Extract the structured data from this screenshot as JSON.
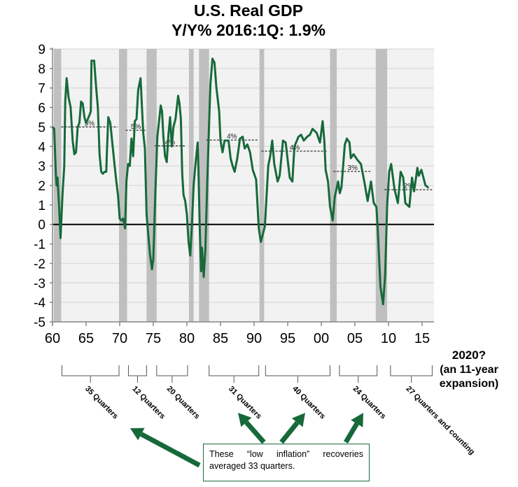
{
  "chart_data": {
    "type": "line",
    "title": "U.S. Real GDP",
    "subtitle": "Y/Y%   2016:1Q:  1.9%",
    "xlabel": "",
    "ylabel": "",
    "xlim": [
      1960,
      2016.6
    ],
    "ylim": [
      -5,
      9
    ],
    "grid": true,
    "y_ticks": [
      "9",
      "8",
      "7",
      "6",
      "5",
      "4",
      "3",
      "2",
      "1",
      "0",
      "-1",
      "-2",
      "-3",
      "-4",
      "-5"
    ],
    "x_ticks": [
      {
        "year": 1960,
        "label": "60"
      },
      {
        "year": 1965,
        "label": "65"
      },
      {
        "year": 1970,
        "label": "70"
      },
      {
        "year": 1975,
        "label": "75"
      },
      {
        "year": 1980,
        "label": "80"
      },
      {
        "year": 1985,
        "label": "85"
      },
      {
        "year": 1990,
        "label": "90"
      },
      {
        "year": 1995,
        "label": "95"
      },
      {
        "year": 2000,
        "label": "00"
      },
      {
        "year": 2005,
        "label": "05"
      },
      {
        "year": 2010,
        "label": "10"
      },
      {
        "year": 2015,
        "label": "15"
      }
    ],
    "line_color": "#17693a",
    "recession_color": "#bfbfbf",
    "recessions": [
      [
        1960.2,
        1961.3
      ],
      [
        1969.9,
        1971.1
      ],
      [
        1974.0,
        1975.5
      ],
      [
        1980.3,
        1981.0
      ],
      [
        1981.8,
        1983.3
      ],
      [
        1990.8,
        1991.5
      ],
      [
        2001.3,
        2002.3
      ],
      [
        2008.1,
        2009.8
      ]
    ],
    "series": [
      {
        "name": "Real GDP Y/Y%",
        "points": [
          [
            1960.0,
            5.0
          ],
          [
            1960.25,
            4.9
          ],
          [
            1960.5,
            2.6
          ],
          [
            1960.6,
            2.0
          ],
          [
            1960.75,
            2.4
          ],
          [
            1961.0,
            0.8
          ],
          [
            1961.2,
            -0.7
          ],
          [
            1961.5,
            1.6
          ],
          [
            1961.75,
            3.0
          ],
          [
            1961.9,
            6.3
          ],
          [
            1962.1,
            7.5
          ],
          [
            1962.4,
            6.5
          ],
          [
            1962.7,
            6.0
          ],
          [
            1963.0,
            4.3
          ],
          [
            1963.25,
            3.6
          ],
          [
            1963.5,
            3.7
          ],
          [
            1963.75,
            5.0
          ],
          [
            1964.0,
            5.2
          ],
          [
            1964.25,
            6.3
          ],
          [
            1964.5,
            6.2
          ],
          [
            1964.75,
            5.5
          ],
          [
            1965.0,
            5.2
          ],
          [
            1965.25,
            5.4
          ],
          [
            1965.5,
            5.6
          ],
          [
            1965.7,
            5.8
          ],
          [
            1965.8,
            8.4
          ],
          [
            1966.2,
            8.4
          ],
          [
            1966.5,
            7.0
          ],
          [
            1966.75,
            6.0
          ],
          [
            1967.0,
            3.6
          ],
          [
            1967.25,
            2.7
          ],
          [
            1967.5,
            2.6
          ],
          [
            1967.75,
            2.7
          ],
          [
            1968.0,
            2.7
          ],
          [
            1968.1,
            3.8
          ],
          [
            1968.3,
            5.5
          ],
          [
            1968.6,
            5.2
          ],
          [
            1968.9,
            4.2
          ],
          [
            1969.25,
            3.0
          ],
          [
            1969.5,
            2.2
          ],
          [
            1969.75,
            1.5
          ],
          [
            1970.0,
            0.3
          ],
          [
            1970.25,
            0.2
          ],
          [
            1970.5,
            0.3
          ],
          [
            1970.8,
            -0.2
          ],
          [
            1971.0,
            2.2
          ],
          [
            1971.25,
            3.1
          ],
          [
            1971.5,
            3.0
          ],
          [
            1971.75,
            4.4
          ],
          [
            1972.0,
            3.5
          ],
          [
            1972.25,
            5.3
          ],
          [
            1972.5,
            5.4
          ],
          [
            1972.75,
            6.9
          ],
          [
            1973.1,
            7.5
          ],
          [
            1973.3,
            6.1
          ],
          [
            1973.5,
            4.7
          ],
          [
            1973.75,
            3.9
          ],
          [
            1974.0,
            0.5
          ],
          [
            1974.25,
            -0.5
          ],
          [
            1974.5,
            -1.5
          ],
          [
            1974.8,
            -2.3
          ],
          [
            1975.0,
            -1.8
          ],
          [
            1975.3,
            1.6
          ],
          [
            1975.6,
            4.5
          ],
          [
            1976.1,
            6.1
          ],
          [
            1976.3,
            5.8
          ],
          [
            1976.5,
            4.5
          ],
          [
            1976.75,
            3.5
          ],
          [
            1977.0,
            3.2
          ],
          [
            1977.25,
            4.6
          ],
          [
            1977.5,
            5.5
          ],
          [
            1977.75,
            4.0
          ],
          [
            1978.0,
            5.0
          ],
          [
            1978.3,
            5.4
          ],
          [
            1978.5,
            6.0
          ],
          [
            1978.7,
            6.6
          ],
          [
            1978.9,
            6.2
          ],
          [
            1979.1,
            5.4
          ],
          [
            1979.3,
            2.6
          ],
          [
            1979.5,
            1.5
          ],
          [
            1979.75,
            1.2
          ],
          [
            1980.0,
            0.5
          ],
          [
            1980.25,
            -0.9
          ],
          [
            1980.5,
            -1.6
          ],
          [
            1980.75,
            0.0
          ],
          [
            1981.0,
            2.0
          ],
          [
            1981.25,
            3.0
          ],
          [
            1981.6,
            4.2
          ],
          [
            1981.75,
            2.4
          ],
          [
            1981.9,
            0.0
          ],
          [
            1982.1,
            -2.4
          ],
          [
            1982.25,
            -1.2
          ],
          [
            1982.5,
            -2.7
          ],
          [
            1982.75,
            -1.3
          ],
          [
            1983.0,
            1.8
          ],
          [
            1983.25,
            4.6
          ],
          [
            1983.5,
            7.2
          ],
          [
            1983.8,
            8.5
          ],
          [
            1984.1,
            8.3
          ],
          [
            1984.4,
            7.0
          ],
          [
            1984.8,
            5.8
          ],
          [
            1985.0,
            4.3
          ],
          [
            1985.3,
            3.7
          ],
          [
            1985.6,
            4.3
          ],
          [
            1986.2,
            4.3
          ],
          [
            1986.5,
            3.4
          ],
          [
            1986.8,
            3.0
          ],
          [
            1987.1,
            2.7
          ],
          [
            1987.5,
            3.4
          ],
          [
            1987.9,
            4.4
          ],
          [
            1988.3,
            4.5
          ],
          [
            1988.6,
            3.9
          ],
          [
            1989.0,
            4.1
          ],
          [
            1989.4,
            3.7
          ],
          [
            1989.8,
            2.8
          ],
          [
            1990.3,
            2.3
          ],
          [
            1990.7,
            -0.2
          ],
          [
            1991.0,
            -0.9
          ],
          [
            1991.3,
            -0.5
          ],
          [
            1991.6,
            -0.1
          ],
          [
            1992.1,
            3.0
          ],
          [
            1992.4,
            3.5
          ],
          [
            1992.7,
            4.3
          ],
          [
            1993.0,
            3.1
          ],
          [
            1993.5,
            2.2
          ],
          [
            1993.8,
            2.5
          ],
          [
            1994.3,
            4.3
          ],
          [
            1994.7,
            4.2
          ],
          [
            1995.3,
            2.4
          ],
          [
            1995.7,
            2.2
          ],
          [
            1996.0,
            4.0
          ],
          [
            1996.6,
            4.5
          ],
          [
            1997.0,
            4.6
          ],
          [
            1997.4,
            4.3
          ],
          [
            1997.9,
            4.5
          ],
          [
            1998.3,
            4.6
          ],
          [
            1998.7,
            4.9
          ],
          [
            1999.3,
            4.7
          ],
          [
            1999.8,
            4.2
          ],
          [
            2000.2,
            5.3
          ],
          [
            2000.45,
            4.3
          ],
          [
            2000.65,
            2.8
          ],
          [
            2001.0,
            2.2
          ],
          [
            2001.3,
            0.9
          ],
          [
            2001.7,
            0.2
          ],
          [
            2002.0,
            1.4
          ],
          [
            2002.5,
            2.2
          ],
          [
            2002.75,
            1.6
          ],
          [
            2003.0,
            1.9
          ],
          [
            2003.5,
            4.1
          ],
          [
            2003.8,
            4.4
          ],
          [
            2004.2,
            4.2
          ],
          [
            2004.4,
            3.4
          ],
          [
            2004.8,
            3.6
          ],
          [
            2005.4,
            3.3
          ],
          [
            2005.9,
            3.1
          ],
          [
            2006.4,
            2.2
          ],
          [
            2006.9,
            1.2
          ],
          [
            2007.4,
            2.2
          ],
          [
            2007.8,
            1.1
          ],
          [
            2008.2,
            0.9
          ],
          [
            2008.4,
            -0.2
          ],
          [
            2008.8,
            -3.2
          ],
          [
            2009.2,
            -4.1
          ],
          [
            2009.5,
            -2.6
          ],
          [
            2009.8,
            1.0
          ],
          [
            2010.1,
            2.7
          ],
          [
            2010.4,
            3.1
          ],
          [
            2010.9,
            1.8
          ],
          [
            2011.4,
            1.1
          ],
          [
            2011.8,
            2.7
          ],
          [
            2012.2,
            2.4
          ],
          [
            2012.5,
            1.1
          ],
          [
            2013.1,
            0.9
          ],
          [
            2013.5,
            2.4
          ],
          [
            2013.8,
            1.7
          ],
          [
            2014.3,
            2.9
          ],
          [
            2014.5,
            2.5
          ],
          [
            2014.9,
            2.8
          ],
          [
            2015.2,
            2.4
          ],
          [
            2015.5,
            2.0
          ],
          [
            2015.9,
            1.9
          ],
          [
            2016.0,
            1.9
          ]
        ]
      }
    ],
    "averages": [
      {
        "from": 1961.3,
        "to": 1969.7,
        "value": 5.0,
        "label": "5%"
      },
      {
        "from": 1970.9,
        "to": 1973.9,
        "value": 4.83,
        "label": "5%"
      },
      {
        "from": 1975.2,
        "to": 1979.8,
        "value": 4.03,
        "label": "4%"
      },
      {
        "from": 1982.9,
        "to": 1990.5,
        "value": 4.33,
        "label": "4%"
      },
      {
        "from": 1991.1,
        "to": 2001.0,
        "value": 3.76,
        "label": "4%"
      },
      {
        "from": 2001.8,
        "to": 2007.5,
        "value": 2.72,
        "label": "3%"
      },
      {
        "from": 2009.4,
        "to": 2016.6,
        "value": 1.78,
        "label": "2%"
      }
    ],
    "expansions": [
      {
        "from": 1961.4,
        "to": 1969.9,
        "label": "35 Quarters"
      },
      {
        "from": 1971.3,
        "to": 1974.0,
        "label": "12 Quarters"
      },
      {
        "from": 1975.5,
        "to": 1980.1,
        "label": "20 Quarters"
      },
      {
        "from": 1983.3,
        "to": 1990.7,
        "label": "31 Quarters"
      },
      {
        "from": 1991.7,
        "to": 2001.3,
        "label": "40 Quarters"
      },
      {
        "from": 2002.7,
        "to": 2008.3,
        "label": "24 Quarters"
      },
      {
        "from": 2010.3,
        "to": 2016.5,
        "label": "27 Quarters and counting"
      }
    ],
    "annotation_right": [
      "2020?",
      "(an 11-year",
      "expansion)"
    ],
    "callout": "These “low inflation” recoveries averaged 33 quarters."
  }
}
